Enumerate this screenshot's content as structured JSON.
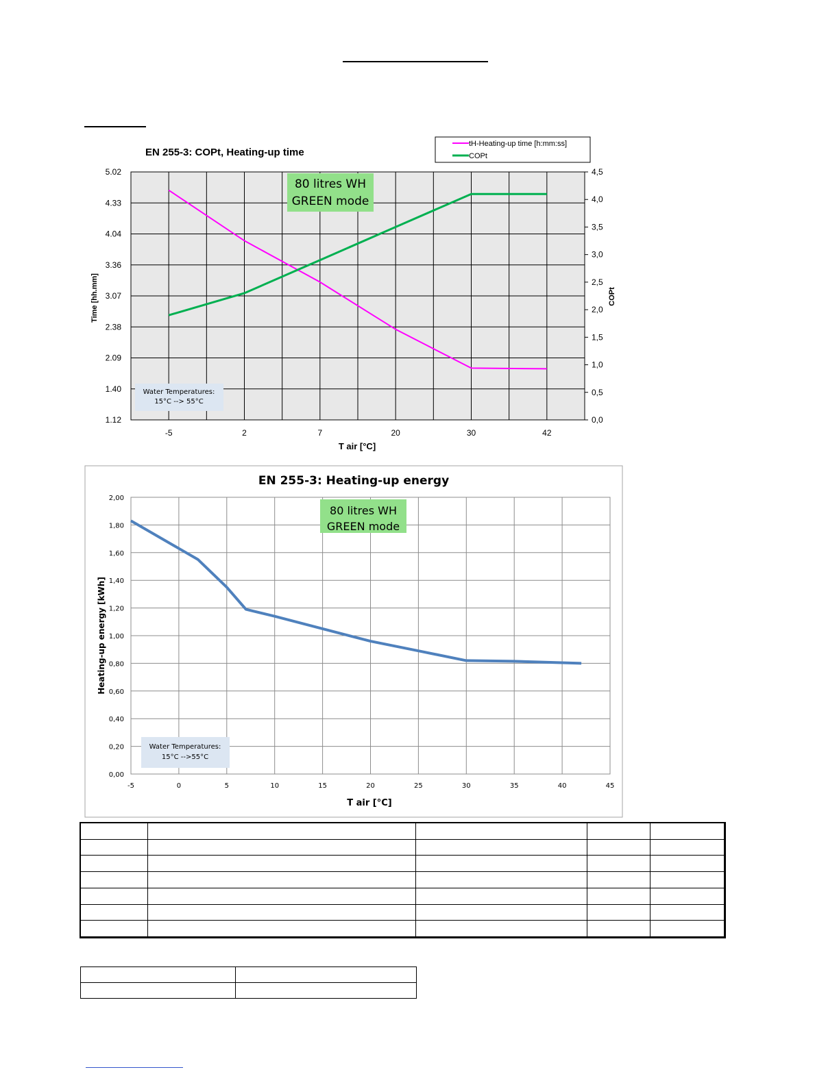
{
  "charts": [
    {
      "type": "line",
      "title": "EN 255-3: COPt, Heating-up time",
      "xlabel": "T air [°C]",
      "ylabel_left": "Time [hh.mm]",
      "ylabel_right": "COPt",
      "x_categories": [
        "-5",
        "2",
        "7",
        "20",
        "30",
        "42"
      ],
      "y_left_ticks": [
        "5.02",
        "4.33",
        "4.04",
        "3.36",
        "3.07",
        "2.38",
        "2.09",
        "1.40",
        "1.12"
      ],
      "y_right_ticks": [
        "4,5",
        "4,0",
        "3,5",
        "3,0",
        "2,5",
        "2,0",
        "1,5",
        "1,0",
        "0,5",
        "0,0"
      ],
      "y_right_range": [
        0,
        4.5
      ],
      "grid": true,
      "legend_position": "top-right",
      "series": [
        {
          "name": "tH-Heating-up time [h:mm:ss]",
          "axis": "left",
          "color": "#ff00ff",
          "x_index": [
            0,
            1,
            2,
            3,
            4,
            5
          ],
          "values_hours": [
            4.75,
            3.97,
            3.33,
            2.6,
            2.0,
            1.99
          ]
        },
        {
          "name": "COPt",
          "axis": "right",
          "color": "#00b050",
          "x_index": [
            0,
            1,
            2,
            3,
            4,
            5
          ],
          "values": [
            1.9,
            2.3,
            2.9,
            3.5,
            4.1,
            4.1
          ]
        }
      ],
      "badge": {
        "line1": "80 litres WH",
        "line2": "GREEN mode"
      },
      "note": {
        "line1": "Water Temperatures:",
        "line2": "15°C --> 55°C"
      }
    },
    {
      "type": "line",
      "title": "EN 255-3: Heating-up energy",
      "xlabel": "T air [°C]",
      "ylabel": "Heating-up energy [kWh]",
      "xlim": [
        -5,
        45
      ],
      "ylim": [
        0,
        2
      ],
      "x_ticks": [
        "-5",
        "0",
        "5",
        "10",
        "15",
        "20",
        "25",
        "30",
        "35",
        "40",
        "45"
      ],
      "y_ticks": [
        "0,00",
        "0,20",
        "0,40",
        "0,60",
        "0,80",
        "1,00",
        "1,20",
        "1,40",
        "1,60",
        "1,80",
        "2,00"
      ],
      "grid": true,
      "series": [
        {
          "color": "#4f81bd",
          "x": [
            -5,
            0,
            2,
            5,
            7,
            10,
            15,
            20,
            25,
            30,
            35,
            42
          ],
          "values": [
            1.83,
            1.63,
            1.55,
            1.35,
            1.19,
            1.14,
            1.05,
            0.96,
            0.89,
            0.82,
            0.815,
            0.8
          ]
        }
      ],
      "badge": {
        "line1": "80 litres WH",
        "line2": "GREEN mode"
      },
      "note": {
        "line1": "Water Temperatures:",
        "line2": "15°C -->55°C"
      }
    }
  ],
  "chart_data": [
    {
      "type": "line",
      "title": "EN 255-3: COPt, Heating-up time",
      "xlabel": "T air [°C]",
      "categories": [
        "-5",
        "2",
        "7",
        "20",
        "30",
        "42"
      ],
      "series": [
        {
          "name": "tH-Heating-up time [h:mm:ss]",
          "values": [
            4.75,
            3.97,
            3.33,
            2.6,
            2.0,
            1.99
          ]
        },
        {
          "name": "COPt",
          "values": [
            1.9,
            2.3,
            2.9,
            3.5,
            4.1,
            4.1
          ]
        }
      ]
    },
    {
      "type": "line",
      "title": "EN 255-3: Heating-up energy",
      "xlabel": "T air [°C]",
      "ylabel": "Heating-up energy [kWh]",
      "x": [
        -5,
        0,
        2,
        5,
        7,
        10,
        15,
        20,
        25,
        30,
        35,
        42
      ],
      "values": [
        1.83,
        1.63,
        1.55,
        1.35,
        1.19,
        1.14,
        1.05,
        0.96,
        0.89,
        0.82,
        0.815,
        0.8
      ],
      "xlim": [
        -5,
        45
      ],
      "ylim": [
        0,
        2
      ]
    }
  ]
}
